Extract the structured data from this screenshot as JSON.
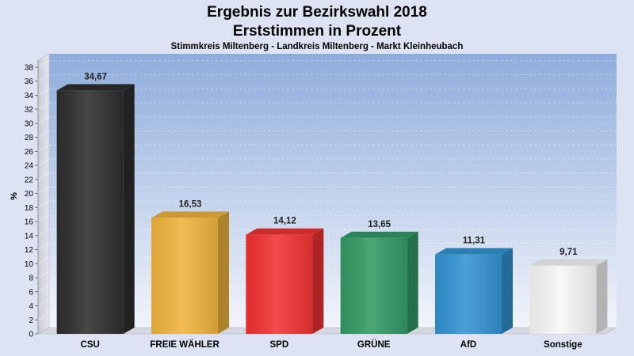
{
  "chart_data": {
    "type": "bar",
    "title": "Ergebnis zur Bezirkswahl 2018",
    "subtitle_line": "Erststimmen in Prozent",
    "subtitle": "Stimmkreis Miltenberg - Landkreis Miltenberg - Markt Kleinheubach",
    "ylabel": "%",
    "ylim": [
      0,
      39
    ],
    "yticks": [
      0,
      2,
      4,
      6,
      8,
      10,
      12,
      14,
      16,
      18,
      20,
      22,
      24,
      26,
      28,
      30,
      32,
      34,
      36,
      38
    ],
    "grid": true,
    "categories": [
      "CSU",
      "FREIE WÄHLER",
      "SPD",
      "GRÜNE",
      "AfD",
      "Sonstige"
    ],
    "values": [
      34.67,
      16.53,
      14.12,
      13.65,
      11.31,
      9.71
    ],
    "value_labels": [
      "34,67",
      "16,53",
      "14,12",
      "13,65",
      "11,31",
      "9,71"
    ],
    "colors": [
      "#2e2e2e",
      "#f0b43c",
      "#f23232",
      "#329b64",
      "#3294d2",
      "#f8f8f8"
    ]
  }
}
